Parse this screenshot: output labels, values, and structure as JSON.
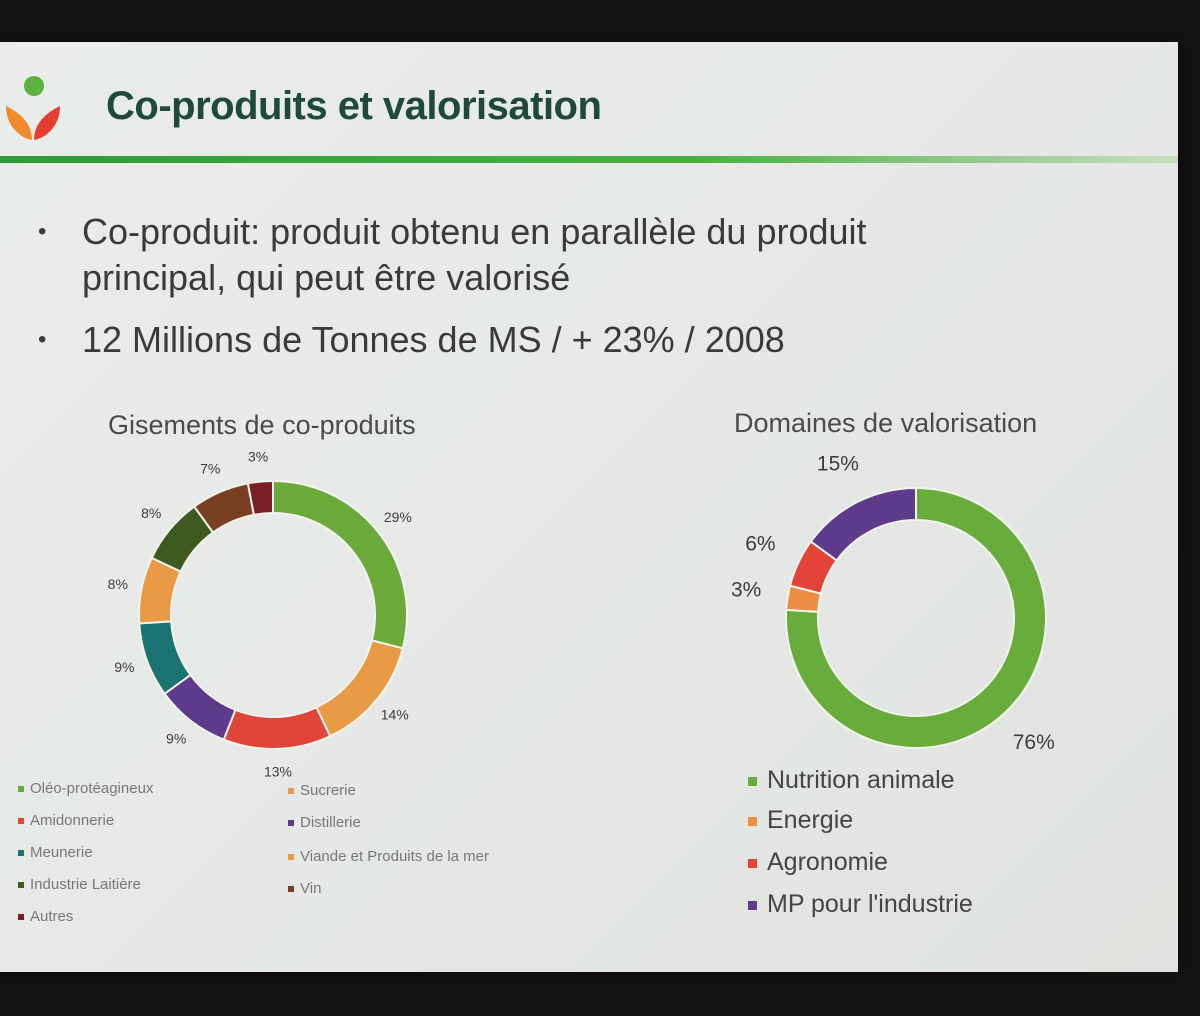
{
  "slide": {
    "title": "Co-produits et valorisation",
    "bullets": [
      {
        "marker": "•",
        "lines": [
          "Co-produit: produit obtenu en parallèle du produit",
          "principal, qui peut être valorisé"
        ]
      },
      {
        "marker": "•",
        "lines": [
          "12 Millions de Tonnes de MS / + 23% / 2008"
        ]
      }
    ],
    "logo_icon": "person-heart-logo-icon"
  },
  "chart_data": [
    {
      "type": "pie",
      "style": "donut",
      "title": "Gisements de co-produits",
      "legend_position": "bottom",
      "slices": [
        {
          "label": "Oléo-protéagineux",
          "value": 29,
          "value_label": "29%",
          "color": "#6aa93a"
        },
        {
          "label": "Sucrerie",
          "value": 14,
          "value_label": "14%",
          "color": "#e89a45"
        },
        {
          "label": "Amidonnerie",
          "value": 13,
          "value_label": "13%",
          "color": "#e0453a"
        },
        {
          "label": "Distillerie",
          "value": 9,
          "value_label": "9%",
          "color": "#5d3a8a"
        },
        {
          "label": "Meunerie",
          "value": 9,
          "value_label": "9%",
          "color": "#1b7472"
        },
        {
          "label": "Viande et Produits de la mer",
          "value": 8,
          "value_label": "8%",
          "color": "#e89a45"
        },
        {
          "label": "Industrie Laitière",
          "value": 8,
          "value_label": "8%",
          "color": "#3f5a20"
        },
        {
          "label": "Vin",
          "value": 7,
          "value_label": "7%",
          "color": "#7a4024"
        },
        {
          "label": "Autres",
          "value": 3,
          "value_label": "3%",
          "color": "#7a1f26"
        }
      ],
      "legend": [
        "Oléo-protéagineux",
        "Amidonnerie",
        "Meunerie",
        "Industrie Laitière",
        "Autres",
        "Sucrerie",
        "Distillerie",
        "Viande et Produits de la mer",
        "Vin"
      ]
    },
    {
      "type": "pie",
      "style": "donut",
      "title": "Domaines de valorisation",
      "legend_position": "bottom",
      "slices": [
        {
          "label": "Nutrition animale",
          "value": 76,
          "value_label": "76%",
          "color": "#68ad3c"
        },
        {
          "label": "Energie",
          "value": 3,
          "value_label": "3%",
          "color": "#eb8e44"
        },
        {
          "label": "Agronomie",
          "value": 6,
          "value_label": "6%",
          "color": "#e24438"
        },
        {
          "label": "MP pour l'industrie",
          "value": 15,
          "value_label": "15%",
          "color": "#5f3b8c"
        }
      ],
      "legend": [
        "Nutrition animale",
        "Energie",
        "Agronomie",
        "MP pour l'industrie"
      ]
    }
  ]
}
